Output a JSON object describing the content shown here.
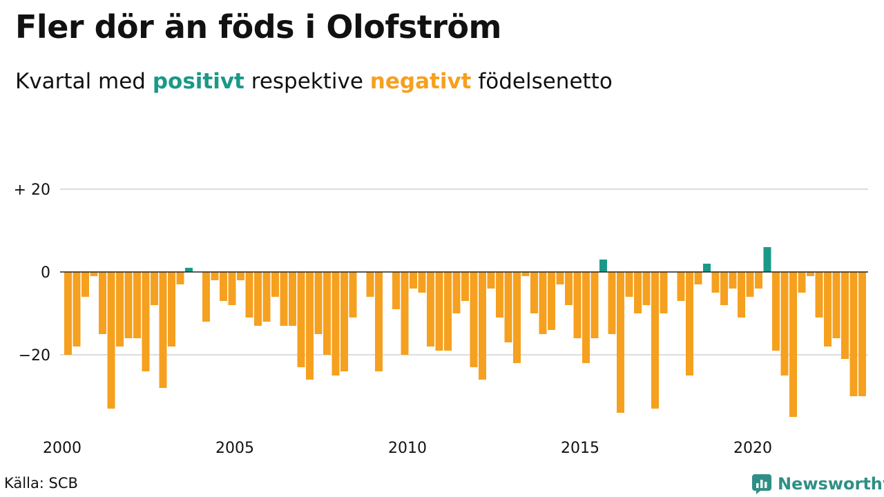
{
  "header": {
    "title": "Fler dör än föds i Olofström",
    "subtitle_pre": "Kvartal med",
    "subtitle_pos": "positivt",
    "subtitle_mid": "respektive",
    "subtitle_neg": "negativt",
    "subtitle_post": "födelsenetto"
  },
  "footer": {
    "source": "Källa: SCB",
    "brand": "Newsworthy"
  },
  "colors": {
    "positive": "#1a9988",
    "negative": "#f6a01f",
    "grid": "#dddddd",
    "axis": "#222222",
    "brand": "#2f8f86"
  },
  "chart_data": {
    "type": "bar",
    "title": "Fler dör än föds i Olofström",
    "subtitle": "Kvartal med positivt respektive negativt födelsenetto",
    "xlabel": "",
    "ylabel": "",
    "ylim": [
      -36,
      22
    ],
    "y_ticks": [
      {
        "value": 20,
        "label": "+ 20"
      },
      {
        "value": 0,
        "label": "0"
      },
      {
        "value": -20,
        "label": "−20"
      }
    ],
    "x_ticks": [
      {
        "year": 2000,
        "label": "2000"
      },
      {
        "year": 2005,
        "label": "2005"
      },
      {
        "year": 2010,
        "label": "2010"
      },
      {
        "year": 2015,
        "label": "2015"
      },
      {
        "year": 2020,
        "label": "2020"
      }
    ],
    "start_year": 2000,
    "grid": true,
    "legend": "none",
    "values": [
      -20,
      -18,
      -6,
      -1,
      -15,
      -33,
      -18,
      -16,
      -16,
      -24,
      -8,
      -28,
      -18,
      -3,
      1,
      0,
      -12,
      -2,
      -7,
      -8,
      -2,
      -11,
      -13,
      -12,
      -6,
      -13,
      -13,
      -23,
      -26,
      -15,
      -20,
      -25,
      -24,
      -11,
      0,
      -6,
      -24,
      0,
      -9,
      -20,
      -4,
      -5,
      -18,
      -19,
      -19,
      -10,
      -7,
      -23,
      -26,
      -4,
      -11,
      -17,
      -22,
      -1,
      -10,
      -15,
      -14,
      -3,
      -8,
      -16,
      -22,
      -16,
      3,
      -15,
      -34,
      -6,
      -10,
      -8,
      -33,
      -10,
      0,
      -7,
      -25,
      -3,
      2,
      -5,
      -8,
      -4,
      -11,
      -6,
      -4,
      6,
      -19,
      -25,
      -35,
      -5,
      -1,
      -11,
      -18,
      -16,
      -21,
      -30,
      -30
    ]
  }
}
